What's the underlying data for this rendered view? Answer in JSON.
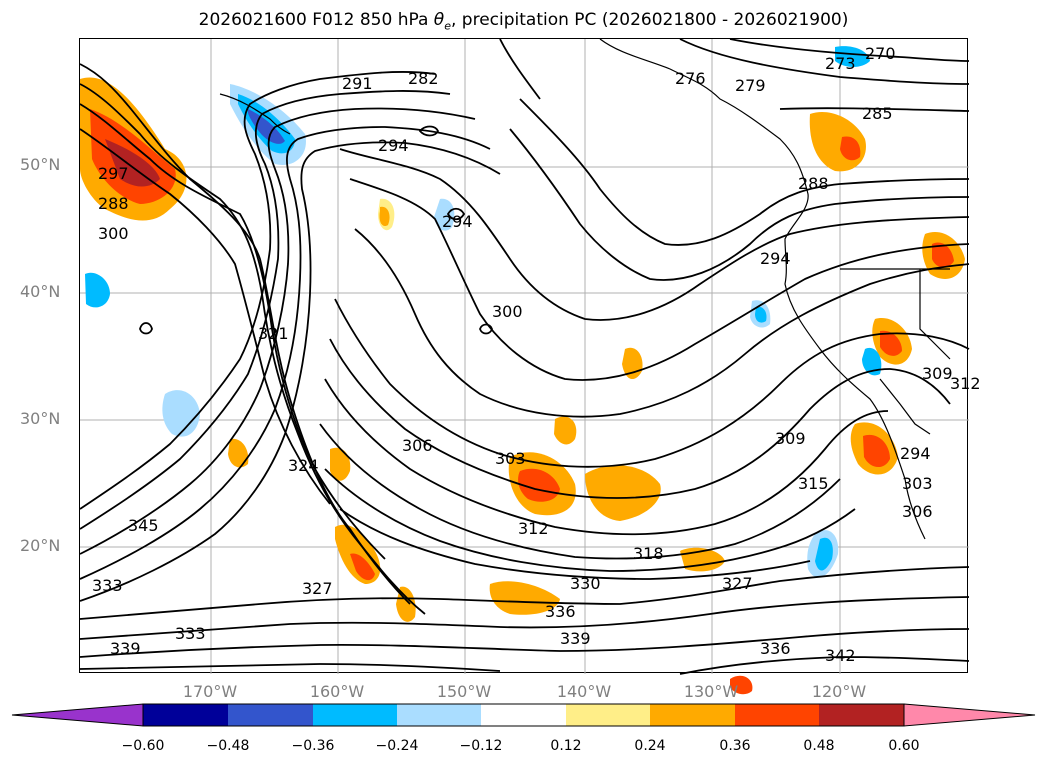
{
  "title": {
    "prefix": "2026021600 F012 850 hPa ",
    "theta": "θ",
    "theta_sub": "e",
    "suffix": ", precipitation PC (2026021800 - 2026021900)"
  },
  "axes": {
    "lat_labels": [
      "50°N",
      "40°N",
      "30°N",
      "20°N"
    ],
    "lon_labels": [
      "170°W",
      "160°W",
      "150°W",
      "140°W",
      "130°W",
      "120°W"
    ]
  },
  "colorbar": {
    "ticks": [
      "−0.60",
      "−0.48",
      "−0.36",
      "−0.24",
      "−0.12",
      "0.12",
      "0.24",
      "0.36",
      "0.48",
      "0.60"
    ],
    "colors": {
      "under": "#9933cc",
      "bins": [
        "#000099",
        "#3355cc",
        "#00bbff",
        "#aaddff",
        "#ffffff",
        "#ffee88",
        "#ffaa00",
        "#ff4400",
        "#b22222"
      ],
      "over": "#ff88aa"
    }
  },
  "contour_labels": [
    "270",
    "273",
    "276",
    "279",
    "282",
    "285",
    "288",
    "291",
    "294",
    "294",
    "294",
    "297",
    "300",
    "300",
    "303",
    "303",
    "306",
    "306",
    "309",
    "309",
    "312",
    "312",
    "315",
    "318",
    "321",
    "324",
    "327",
    "327",
    "330",
    "333",
    "333",
    "336",
    "336",
    "339",
    "339",
    "342",
    "288",
    "294",
    "345"
  ],
  "precip_colors": {
    "yellow": "#ffee88",
    "orange": "#ffaa00",
    "red": "#ff4400",
    "darkred": "#b22222",
    "lightblue": "#aaddff",
    "blue": "#00bbff",
    "medblue": "#3355cc"
  }
}
